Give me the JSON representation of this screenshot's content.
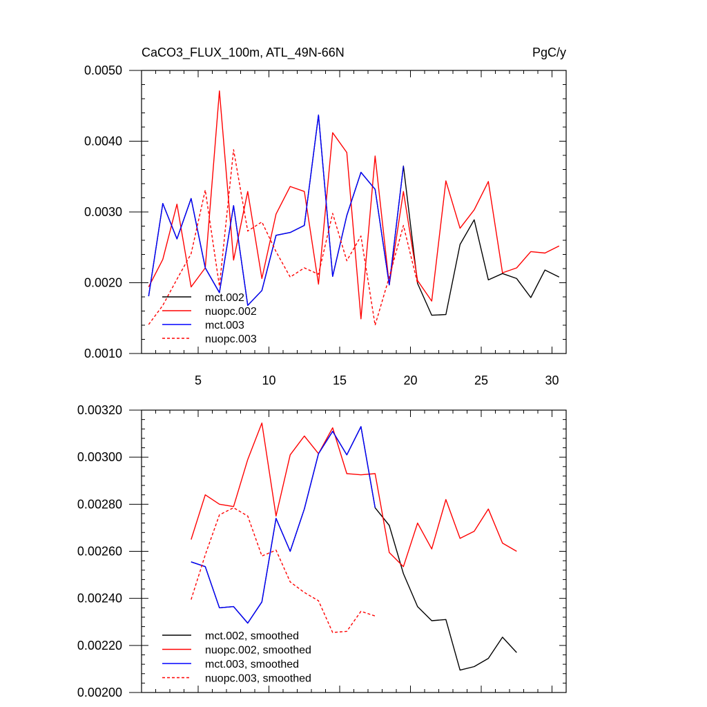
{
  "header": {
    "title": "CaCO3_FLUX_100m, ATL_49N-66N",
    "units": "PgC/y"
  },
  "chart_data": [
    {
      "type": "line",
      "title": "CaCO3_FLUX_100m, ATL_49N-66N",
      "units": "PgC/y",
      "xlim": [
        1,
        31
      ],
      "ylim": [
        0.001,
        0.005
      ],
      "x_ticks": [
        5,
        10,
        15,
        20,
        25,
        30
      ],
      "y_ticks": [
        0.001,
        0.002,
        0.003,
        0.004,
        0.005
      ],
      "y_tick_labels": [
        "0.0010",
        "0.0020",
        "0.0030",
        "0.0040",
        "0.0050"
      ],
      "x_tick_labels": [
        "5",
        "10",
        "15",
        "20",
        "25",
        "30"
      ],
      "legend_position": "bottom-left",
      "series": [
        {
          "name": "mct.002",
          "color": "#000000",
          "dash": "solid",
          "x": [
            1.5,
            2.5,
            3.5,
            4.5,
            5.5,
            6.5,
            7.5,
            8.5,
            9.5,
            10.5,
            11.5,
            12.5,
            13.5,
            14.5,
            15.5,
            16.5,
            17.5,
            18.5,
            19.5,
            20.5,
            21.5,
            22.5,
            23.5,
            24.5,
            25.5,
            26.5,
            27.5,
            28.5,
            29.5,
            30.5
          ],
          "values": [
            0.00181,
            0.00312,
            0.00262,
            0.00319,
            0.00221,
            0.00186,
            0.00309,
            0.00168,
            0.00189,
            0.00267,
            0.00271,
            0.00281,
            0.00437,
            0.00209,
            0.00295,
            0.00356,
            0.00332,
            0.00197,
            0.00365,
            0.00199,
            0.00154,
            0.00155,
            0.00254,
            0.00289,
            0.00204,
            0.00213,
            0.00206,
            0.00179,
            0.00218,
            0.00208
          ]
        },
        {
          "name": "nuopc.002",
          "color": "#ff0000",
          "dash": "solid",
          "x": [
            1.5,
            2.5,
            3.5,
            4.5,
            5.5,
            6.5,
            7.5,
            8.5,
            9.5,
            10.5,
            11.5,
            12.5,
            13.5,
            14.5,
            15.5,
            16.5,
            17.5,
            18.5,
            19.5,
            20.5,
            21.5,
            22.5,
            23.5,
            24.5,
            25.5,
            26.5,
            27.5,
            28.5,
            29.5,
            30.5
          ],
          "values": [
            0.00194,
            0.00233,
            0.00311,
            0.00194,
            0.00221,
            0.00471,
            0.00232,
            0.00329,
            0.00206,
            0.00297,
            0.00336,
            0.00329,
            0.00198,
            0.00412,
            0.00384,
            0.00149,
            0.00379,
            0.00197,
            0.00329,
            0.00203,
            0.00174,
            0.00344,
            0.00277,
            0.00303,
            0.00343,
            0.00214,
            0.00221,
            0.00244,
            0.00242,
            0.00252
          ]
        },
        {
          "name": "mct.003",
          "color": "#0000ff",
          "dash": "solid",
          "x": [
            1.5,
            2.5,
            3.5,
            4.5,
            5.5,
            6.5,
            7.5,
            8.5,
            9.5,
            10.5,
            11.5,
            12.5,
            13.5,
            14.5,
            15.5,
            16.5,
            17.5,
            18.5,
            19.5
          ],
          "values": [
            0.00181,
            0.00312,
            0.00262,
            0.00319,
            0.00221,
            0.00186,
            0.00309,
            0.00168,
            0.00189,
            0.00267,
            0.00271,
            0.00281,
            0.00437,
            0.00209,
            0.00295,
            0.00356,
            0.00332,
            0.00197,
            0.00365
          ]
        },
        {
          "name": "nuopc.003",
          "color": "#ff0000",
          "dash": "dashed",
          "x": [
            1.5,
            2.5,
            3.5,
            4.5,
            5.5,
            6.5,
            7.5,
            8.5,
            9.5,
            10.5,
            11.5,
            12.5,
            13.5,
            14.5,
            15.5,
            16.5,
            17.5,
            18.5,
            19.5,
            20.5
          ],
          "values": [
            0.00141,
            0.00168,
            0.00205,
            0.00241,
            0.00331,
            0.00195,
            0.00388,
            0.00273,
            0.00286,
            0.00244,
            0.00208,
            0.00221,
            0.00212,
            0.00298,
            0.00231,
            0.00266,
            0.0014,
            0.00208,
            0.00281,
            0.00199
          ]
        }
      ]
    },
    {
      "type": "line",
      "xlim": [
        1,
        31
      ],
      "ylim": [
        0.002,
        0.0032
      ],
      "x_ticks": [
        5,
        10,
        15,
        20,
        25,
        30
      ],
      "y_ticks": [
        0.002,
        0.0022,
        0.0024,
        0.0026,
        0.0028,
        0.003,
        0.0032
      ],
      "y_tick_labels": [
        "0.00200",
        "0.00220",
        "0.00240",
        "0.00260",
        "0.00280",
        "0.00300",
        "0.00320"
      ],
      "legend_position": "bottom-left",
      "series": [
        {
          "name": "mct.002, smoothed",
          "color": "#000000",
          "dash": "solid",
          "x": [
            4.5,
            5.5,
            6.5,
            7.5,
            8.5,
            9.5,
            10.5,
            11.5,
            12.5,
            13.5,
            14.5,
            15.5,
            16.5,
            17.5,
            18.5,
            19.5,
            20.5,
            21.5,
            22.5,
            23.5,
            24.5,
            25.5,
            26.5,
            27.5
          ],
          "values": [
            0.002555,
            0.002535,
            0.00236,
            0.002365,
            0.002295,
            0.002385,
            0.00274,
            0.0026,
            0.00278,
            0.003015,
            0.00311,
            0.00301,
            0.00313,
            0.002785,
            0.00271,
            0.002505,
            0.002365,
            0.002305,
            0.00231,
            0.002095,
            0.00211,
            0.002145,
            0.002235,
            0.00217
          ]
        },
        {
          "name": "nuopc.002, smoothed",
          "color": "#ff0000",
          "dash": "solid",
          "x": [
            4.5,
            5.5,
            6.5,
            7.5,
            8.5,
            9.5,
            10.5,
            11.5,
            12.5,
            13.5,
            14.5,
            15.5,
            16.5,
            17.5,
            18.5,
            19.5,
            20.5,
            21.5,
            22.5,
            23.5,
            24.5,
            25.5,
            26.5,
            27.5
          ],
          "values": [
            0.00265,
            0.00284,
            0.0028,
            0.00279,
            0.00299,
            0.003145,
            0.00275,
            0.00301,
            0.00309,
            0.003015,
            0.003125,
            0.00293,
            0.002925,
            0.00293,
            0.002595,
            0.002535,
            0.00272,
            0.00261,
            0.00282,
            0.002655,
            0.002685,
            0.00278,
            0.002635,
            0.0026
          ]
        },
        {
          "name": "mct.003, smoothed",
          "color": "#0000ff",
          "dash": "solid",
          "x": [
            4.5,
            5.5,
            6.5,
            7.5,
            8.5,
            9.5,
            10.5,
            11.5,
            12.5,
            13.5,
            14.5,
            15.5,
            16.5,
            17.5
          ],
          "values": [
            0.002555,
            0.002535,
            0.00236,
            0.002365,
            0.002295,
            0.002385,
            0.00274,
            0.0026,
            0.00278,
            0.003015,
            0.00311,
            0.00301,
            0.00313,
            0.002785
          ]
        },
        {
          "name": "nuopc.003, smoothed",
          "color": "#ff0000",
          "dash": "dashed",
          "x": [
            4.5,
            5.5,
            6.5,
            7.5,
            8.5,
            9.5,
            10.5,
            11.5,
            12.5,
            13.5,
            14.5,
            15.5,
            16.5,
            17.5
          ],
          "values": [
            0.002395,
            0.002585,
            0.002755,
            0.002785,
            0.00275,
            0.00258,
            0.002605,
            0.00247,
            0.002425,
            0.00239,
            0.002255,
            0.00226,
            0.002345,
            0.002325
          ]
        }
      ]
    }
  ]
}
